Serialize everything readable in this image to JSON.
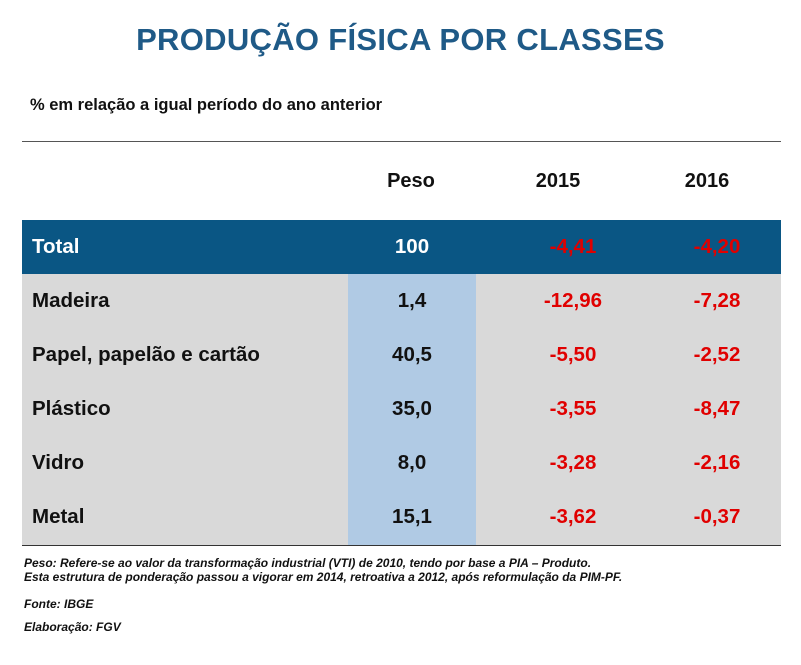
{
  "chart_data": {
    "type": "table",
    "title": "PRODUÇÃO FÍSICA POR CLASSES",
    "subtitle": "% em relação a igual período do ano anterior",
    "columns": [
      "Peso",
      "2015",
      "2016"
    ],
    "total": {
      "label": "Total",
      "peso": "100",
      "y2015": "-4,41",
      "y2016": "-4,20"
    },
    "rows": [
      {
        "label": "Madeira",
        "peso": "1,4",
        "y2015": "-12,96",
        "y2016": "-7,28"
      },
      {
        "label": "Papel, papelão e cartão",
        "peso": "40,5",
        "y2015": "-5,50",
        "y2016": "-2,52"
      },
      {
        "label": "Plástico",
        "peso": "35,0",
        "y2015": "-3,55",
        "y2016": "-8,47"
      },
      {
        "label": "Vidro",
        "peso": "8,0",
        "y2015": "-3,28",
        "y2016": "-2,16"
      },
      {
        "label": "Metal",
        "peso": "15,1",
        "y2015": "-3,62",
        "y2016": "-0,37"
      }
    ],
    "notes": [
      "Peso: Refere-se ao valor da transformação industrial (VTI) de 2010, tendo por base a PIA – Produto.",
      "Esta estrutura de ponderação passou a vigorar em 2014, retroativa a 2012, após reformulação da PIM-PF."
    ],
    "source": "Fonte: IBGE",
    "elaboration": "Elaboração: FGV"
  },
  "colors": {
    "title": "#1f5a87",
    "total_row_bg": "#0a5684",
    "body_bg": "#d9d9d9",
    "peso_column_bg": "#b0cae4",
    "negative_value": "#e00000"
  }
}
